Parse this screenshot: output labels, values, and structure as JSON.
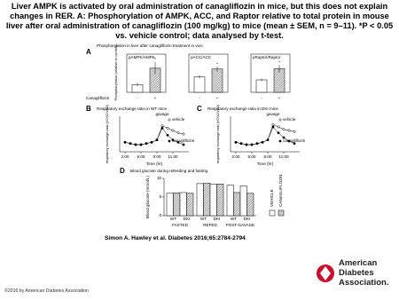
{
  "header": {
    "title": "Liver AMPK is activated by oral administration of canagliflozin in mice, but this does not explain changes in RER. A: Phosphorylation of AMPK, ACC, and Raptor relative to total protein in mouse liver after oral administration of canagliflozin (100 mg/kg) to mice (mean ± SEM, n = 9–11). *P < 0.05 vs. vehicle control; data analysed by t-test."
  },
  "figure": {
    "panel_a": {
      "letter": "A",
      "title": "Phosphorylation in liver after canagliflozin treatment in vivo",
      "y_label": "Phosphorylation (relative to control)",
      "row_label": "Canagliflozin",
      "treatments": [
        "-",
        "+"
      ],
      "annotation": "*",
      "colors": [
        "#ffffff",
        "#bdbdbd"
      ],
      "charts": [
        {
          "title": "pAMPK/AMPK",
          "ylim": [
            0,
            4
          ],
          "values": [
            1.0,
            3.1
          ],
          "errors": [
            0.2,
            0.8
          ]
        },
        {
          "title": "pACC/ACC",
          "ylim": [
            0,
            2
          ],
          "values": [
            1.0,
            1.5
          ],
          "errors": [
            0.1,
            0.15
          ]
        },
        {
          "title": "pRaptor/Raptor",
          "ylim": [
            0,
            2.5
          ],
          "values": [
            1.0,
            1.9
          ],
          "errors": [
            0.1,
            0.3
          ]
        }
      ]
    },
    "panels_bc": [
      {
        "letter": "B",
        "title": "Respiratory exchange ratio in WT mice",
        "y_label": "respiratory exchange ratio (VCO2/VO2)",
        "x_label": "Time (hr)",
        "annotation": "gavage",
        "x": [
          2,
          3,
          4,
          5,
          6,
          7,
          8,
          9,
          10,
          11,
          12,
          13
        ],
        "xlim": [
          1,
          14
        ],
        "ylim": [
          0.7,
          1.0
        ],
        "xticks": [
          {
            "value": 2,
            "label": "2:00"
          },
          {
            "value": 5,
            "label": "5:00"
          },
          {
            "value": 8,
            "label": "8:00"
          },
          {
            "value": 11,
            "label": "11:00"
          }
        ],
        "series": [
          {
            "name": "vehicle",
            "color": "#ffffff",
            "values": [
              0.78,
              0.77,
              0.76,
              0.76,
              0.77,
              0.78,
              0.8,
              0.92,
              0.9,
              0.88,
              0.86,
              0.85
            ]
          },
          {
            "name": "canagliflozin",
            "color": "#000000",
            "values": [
              0.78,
              0.77,
              0.76,
              0.76,
              0.77,
              0.78,
              0.8,
              0.9,
              0.84,
              0.8,
              0.78,
              0.76
            ]
          }
        ]
      },
      {
        "letter": "C",
        "title": "Respiratory exchange ratio in DKI mice",
        "y_label": "respiratory exchange ratio (VCO2/VO2)",
        "x_label": "Time (hr)",
        "annotation": "gavage",
        "x": [
          2,
          3,
          4,
          5,
          6,
          7,
          8,
          9,
          10,
          11,
          12,
          13
        ],
        "xlim": [
          1,
          14
        ],
        "ylim": [
          0.7,
          1.0
        ],
        "xticks": [
          {
            "value": 2,
            "label": "2:00"
          },
          {
            "value": 5,
            "label": "5:00"
          },
          {
            "value": 8,
            "label": "8:00"
          },
          {
            "value": 11,
            "label": "11:00"
          }
        ],
        "series": [
          {
            "name": "vehicle",
            "color": "#ffffff",
            "values": [
              0.78,
              0.77,
              0.76,
              0.76,
              0.77,
              0.78,
              0.8,
              0.93,
              0.91,
              0.89,
              0.88,
              0.87
            ]
          },
          {
            "name": "canagliflozin",
            "color": "#000000",
            "values": [
              0.78,
              0.77,
              0.76,
              0.76,
              0.77,
              0.78,
              0.8,
              0.91,
              0.86,
              0.82,
              0.79,
              0.77
            ]
          }
        ]
      }
    ],
    "panel_d": {
      "letter": "D",
      "title": "Blood glucose during refeeding and fasting",
      "y_label": "Blood glucose (mmol/L)",
      "ylim": [
        0,
        10
      ],
      "yticks": [
        0,
        5,
        10
      ],
      "conditions": [
        "FASTED",
        "REFED",
        "POST-GAVAGE"
      ],
      "genotypes": [
        "WT",
        "DKI",
        "WT",
        "DKI",
        "WT",
        "DKI"
      ],
      "series": [
        {
          "name": "VEHICLE",
          "color": "#ffffff",
          "values": [
            6.0,
            6.2,
            8.6,
            8.4,
            8.2,
            8.0
          ]
        },
        {
          "name": "CANAGLIFLOZIN",
          "color": "#bdbdbd",
          "values": [
            6.1,
            6.0,
            8.7,
            8.5,
            6.2,
            6.0
          ]
        }
      ]
    }
  },
  "citation": "Simon A. Hawley et al. Diabetes 2016;65:2784-2794",
  "copyright": "©2016 by American Diabetes Association",
  "logo": {
    "lines": [
      "American",
      "Diabetes",
      "Association."
    ]
  }
}
